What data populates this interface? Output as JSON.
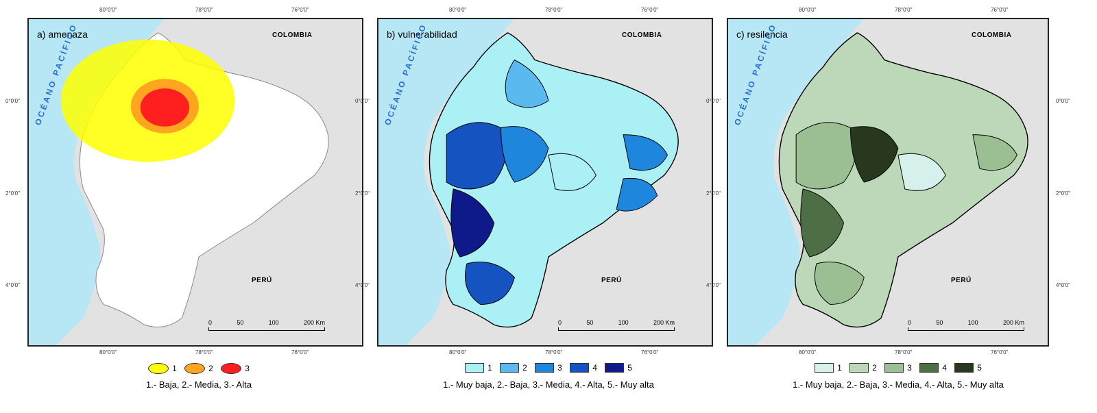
{
  "map_data": {
    "longitude_ticks": [
      "80°0'0\"",
      "78°0'0\"",
      "76°0'0\""
    ],
    "latitude_ticks": [
      "0°0'0\"",
      "2°0'0\"",
      "4°0'0\""
    ],
    "ocean_label": "OCÉANO PACÍFICO",
    "country_north": "COLOMBIA",
    "country_south": "PERÚ",
    "scale_ticks": [
      "0",
      "50",
      "100",
      "200 Km"
    ],
    "colors": {
      "ocean": "#b7e6f5",
      "background": "#e2e2e2"
    }
  },
  "panels": [
    {
      "title": "a) amenaza",
      "legend": [
        {
          "label": "1",
          "color": "#ffff00"
        },
        {
          "label": "2",
          "color": "#ffa51f"
        },
        {
          "label": "3",
          "color": "#ff1f1f"
        }
      ],
      "caption": "1.- Baja, 2.- Media, 3.- Alta"
    },
    {
      "title": "b) vulnerabilidad",
      "legend": [
        {
          "label": "1",
          "color": "#aaf0f5"
        },
        {
          "label": "2",
          "color": "#5ab9ee"
        },
        {
          "label": "3",
          "color": "#1f86de"
        },
        {
          "label": "4",
          "color": "#1553c0"
        },
        {
          "label": "5",
          "color": "#0e1a8a"
        }
      ],
      "caption": "1.- Muy baja, 2.- Baja, 3.- Media, 4.- Alta, 5.- Muy alta"
    },
    {
      "title": "c) resilencia",
      "legend": [
        {
          "label": "1",
          "color": "#d6f0ec"
        },
        {
          "label": "2",
          "color": "#bcd8b8"
        },
        {
          "label": "3",
          "color": "#9bbf92"
        },
        {
          "label": "4",
          "color": "#4e6e45"
        },
        {
          "label": "5",
          "color": "#27381f"
        }
      ],
      "caption": "1.- Muy baja, 2.- Baja, 3.- Media, 4.- Alta, 5.- Muy alta"
    }
  ]
}
